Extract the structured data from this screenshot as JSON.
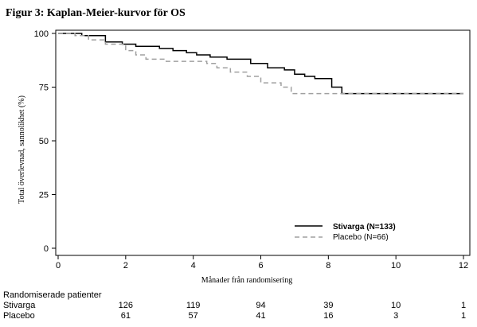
{
  "figure": {
    "title": "Figur 3: Kaplan-Meier-kurvor för OS"
  },
  "chart_data": {
    "type": "line",
    "title": "Figur 3: Kaplan-Meier-kurvor för OS",
    "xlabel": "Månader från randomisering",
    "ylabel": "Total överlevnad, sannolikhet (%)",
    "xlim": [
      0,
      12
    ],
    "ylim": [
      0,
      100
    ],
    "xticks": [
      "0",
      "2",
      "4",
      "6",
      "8",
      "10",
      "12"
    ],
    "yticks": [
      "0",
      "25",
      "50",
      "75",
      "100"
    ],
    "grid": false,
    "legend_position": "bottom-right",
    "series": [
      {
        "name": "Stivarga (N=133)",
        "style": "solid",
        "color": "#000000",
        "x": [
          0,
          0.7,
          1.4,
          1.9,
          2.3,
          3.0,
          3.4,
          3.8,
          4.1,
          4.5,
          5.0,
          5.7,
          6.2,
          6.7,
          7.0,
          7.3,
          7.6,
          8.1,
          8.4,
          12.0
        ],
        "y": [
          100,
          99,
          96,
          95,
          94,
          93,
          92,
          91,
          90,
          89,
          88,
          86,
          84,
          83,
          81,
          80,
          79,
          75,
          72,
          72
        ]
      },
      {
        "name": "Placebo (N=66)",
        "style": "dashed",
        "color": "#a0a0a0",
        "x": [
          0,
          0.5,
          0.9,
          1.4,
          2.0,
          2.3,
          2.6,
          3.2,
          4.4,
          4.7,
          5.1,
          5.6,
          6.0,
          6.6,
          6.9,
          8.1,
          8.4,
          12.0
        ],
        "y": [
          100,
          99,
          97,
          95,
          92,
          90,
          88,
          87,
          86,
          84,
          82,
          80,
          77,
          75,
          72,
          72,
          72,
          72
        ]
      }
    ]
  },
  "risk_table": {
    "header": "Randomiserade patienter",
    "times": [
      2,
      4,
      6,
      8,
      10,
      12
    ],
    "rows": [
      {
        "label": "Stivarga",
        "values": [
          "126",
          "119",
          "94",
          "39",
          "10",
          "1"
        ]
      },
      {
        "label": "Placebo",
        "values": [
          "61",
          "57",
          "41",
          "16",
          "3",
          "1"
        ]
      }
    ]
  }
}
